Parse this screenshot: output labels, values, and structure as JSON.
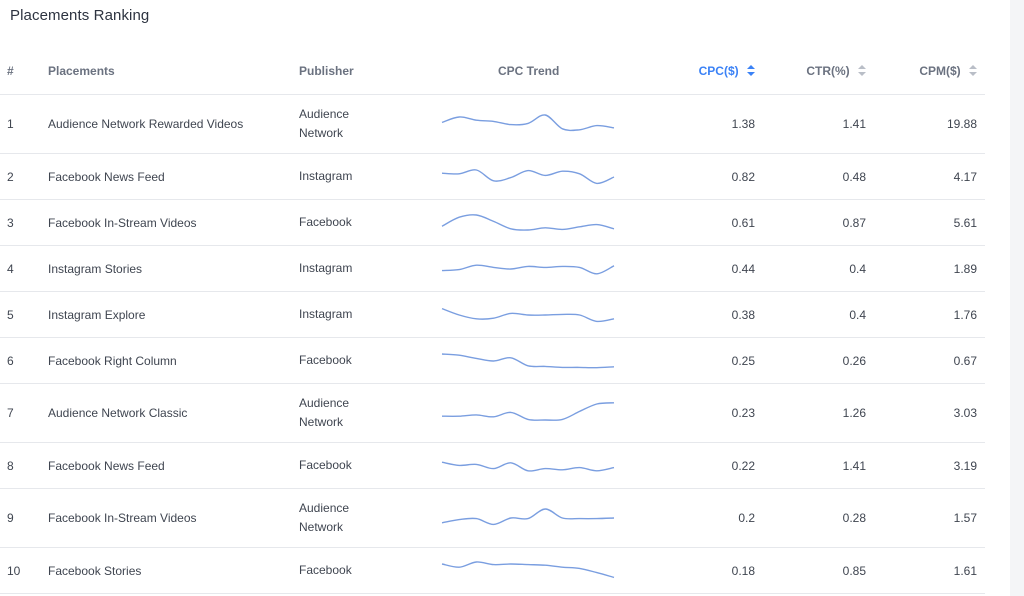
{
  "title": "Placements Ranking",
  "columns": {
    "index": "#",
    "placements": "Placements",
    "publisher": "Publisher",
    "trend": "CPC Trend",
    "cpc": "CPC($)",
    "ctr": "CTR(%)",
    "cpm": "CPM($)"
  },
  "sorted_column": "cpc",
  "accent_color": "#3b82f6",
  "spark_color": "#7a9ee0",
  "rows": [
    {
      "idx": "1",
      "placement": "Audience Network Rewarded Videos",
      "publisher": "Audience Network",
      "cpc": "1.38",
      "ctr": "1.41",
      "cpm": "19.88",
      "trend": [
        0.55,
        0.72,
        0.62,
        0.58,
        0.48,
        0.52,
        0.78,
        0.35,
        0.32,
        0.45,
        0.38
      ]
    },
    {
      "idx": "2",
      "placement": "Facebook News Feed",
      "publisher": "Instagram",
      "cpc": "0.82",
      "ctr": "0.48",
      "cpm": "4.17",
      "trend": [
        0.62,
        0.6,
        0.72,
        0.38,
        0.48,
        0.7,
        0.55,
        0.68,
        0.6,
        0.3,
        0.5
      ]
    },
    {
      "idx": "3",
      "placement": "Facebook In-Stream Videos",
      "publisher": "Facebook",
      "cpc": "0.61",
      "ctr": "0.87",
      "cpm": "5.61",
      "trend": [
        0.4,
        0.68,
        0.75,
        0.55,
        0.32,
        0.28,
        0.35,
        0.3,
        0.38,
        0.45,
        0.32
      ]
    },
    {
      "idx": "4",
      "placement": "Instagram Stories",
      "publisher": "Instagram",
      "cpc": "0.44",
      "ctr": "0.4",
      "cpm": "1.89",
      "trend": [
        0.45,
        0.48,
        0.62,
        0.55,
        0.5,
        0.58,
        0.55,
        0.58,
        0.55,
        0.35,
        0.6
      ]
    },
    {
      "idx": "5",
      "placement": "Instagram Explore",
      "publisher": "Instagram",
      "cpc": "0.38",
      "ctr": "0.4",
      "cpm": "1.76",
      "trend": [
        0.7,
        0.5,
        0.38,
        0.4,
        0.55,
        0.5,
        0.5,
        0.52,
        0.5,
        0.3,
        0.38
      ]
    },
    {
      "idx": "6",
      "placement": "Facebook Right Column",
      "publisher": "Facebook",
      "cpc": "0.25",
      "ctr": "0.26",
      "cpm": "0.67",
      "trend": [
        0.72,
        0.68,
        0.58,
        0.5,
        0.6,
        0.35,
        0.33,
        0.3,
        0.3,
        0.29,
        0.32
      ]
    },
    {
      "idx": "7",
      "placement": "Audience Network Classic",
      "publisher": "Audience Network",
      "cpc": "0.23",
      "ctr": "1.26",
      "cpm": "3.03",
      "trend": [
        0.4,
        0.4,
        0.44,
        0.38,
        0.52,
        0.3,
        0.28,
        0.3,
        0.55,
        0.78,
        0.82
      ]
    },
    {
      "idx": "8",
      "placement": "Facebook News Feed",
      "publisher": "Facebook",
      "cpc": "0.22",
      "ctr": "1.41",
      "cpm": "3.19",
      "trend": [
        0.62,
        0.52,
        0.55,
        0.42,
        0.6,
        0.35,
        0.42,
        0.38,
        0.45,
        0.35,
        0.45
      ]
    },
    {
      "idx": "9",
      "placement": "Facebook In-Stream Videos",
      "publisher": "Audience Network",
      "cpc": "0.2",
      "ctr": "0.28",
      "cpm": "1.57",
      "trend": [
        0.35,
        0.45,
        0.48,
        0.3,
        0.5,
        0.48,
        0.78,
        0.5,
        0.48,
        0.48,
        0.5
      ]
    },
    {
      "idx": "10",
      "placement": "Facebook Stories",
      "publisher": "Facebook",
      "cpc": "0.18",
      "ctr": "0.85",
      "cpm": "1.61",
      "trend": [
        0.72,
        0.62,
        0.78,
        0.7,
        0.72,
        0.7,
        0.68,
        0.62,
        0.58,
        0.45,
        0.3
      ]
    }
  ]
}
